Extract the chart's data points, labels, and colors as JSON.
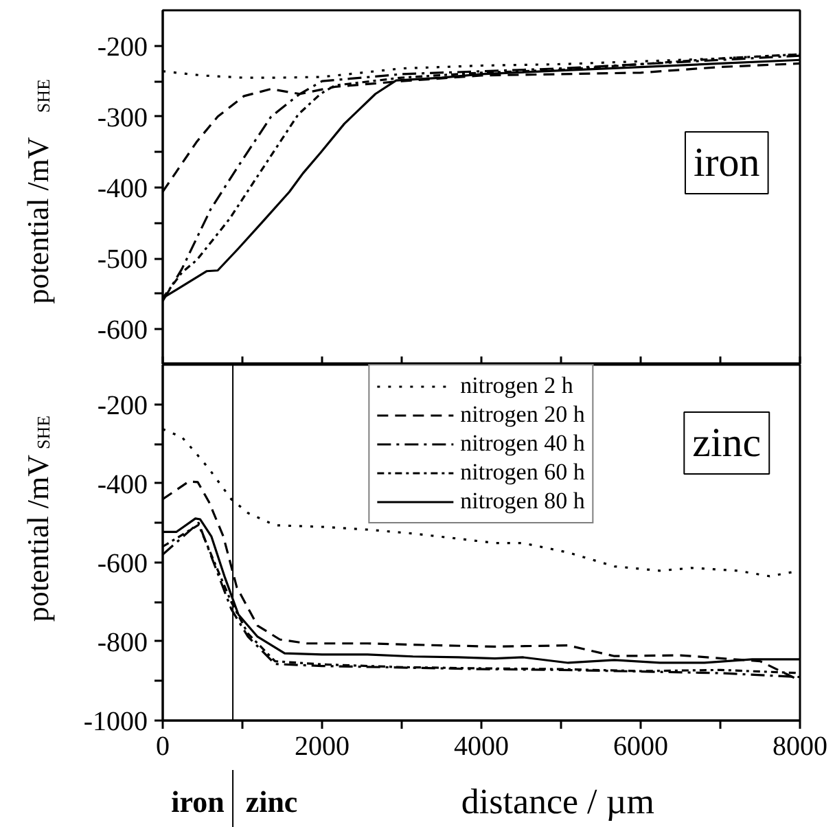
{
  "chart_data": [
    {
      "type": "line",
      "title": "iron",
      "ylabel": "potential /mV$_{SHE}$",
      "xlim": [
        0,
        8000
      ],
      "ylim": [
        -650,
        -150
      ],
      "xticks": [
        0,
        {
          "value": 1000,
          "label": null
        },
        2000,
        {
          "value": 3000,
          "label": null
        },
        4000,
        {
          "value": 5000,
          "label": null
        },
        6000,
        {
          "value": 7000,
          "label": null
        },
        8000
      ],
      "yticks": [
        -600,
        {
          "value": -550,
          "label": null
        },
        -500,
        {
          "value": -450,
          "label": null
        },
        -400,
        {
          "value": -350,
          "label": null
        },
        -300,
        {
          "value": -250,
          "label": null
        },
        -200
      ],
      "tick_labels": "y",
      "grid": false,
      "series": [
        {
          "color": "#000000",
          "line_style": "dotted",
          "x": [
            0,
            500,
            1000,
            1500,
            2000,
            2500,
            3000,
            4000,
            5000,
            6000,
            7000,
            8000
          ],
          "values": [
            -236,
            -242,
            -245,
            -245,
            -244,
            -238,
            -232,
            -228,
            -226,
            -222,
            -218,
            -212
          ]
        },
        {
          "color": "#000000",
          "line_style": "dashed",
          "x": [
            0,
            430,
            690,
            1020,
            1360,
            1720,
            2160,
            3000,
            4000,
            5000,
            6000,
            7000,
            8000
          ],
          "values": [
            -406,
            -335,
            -300,
            -271,
            -261,
            -268,
            -258,
            -250,
            -242,
            -240,
            -238,
            -230,
            -225
          ]
        },
        {
          "color": "#000000",
          "line_style": "dashdot",
          "x": [
            0,
            240,
            600,
            930,
            1360,
            1720,
            2000,
            3000,
            4000,
            5000,
            6000,
            7000,
            8000
          ],
          "values": [
            -560,
            -515,
            -431,
            -373,
            -300,
            -268,
            -250,
            -240,
            -236,
            -232,
            -226,
            -220,
            -214
          ]
        },
        {
          "color": "#000000",
          "line_style": "dotdash",
          "x": [
            0,
            240,
            430,
            840,
            1290,
            1700,
            1980,
            2160,
            3000,
            4000,
            5000,
            6000,
            7000,
            8000
          ],
          "values": [
            -556,
            -520,
            -502,
            -444,
            -367,
            -297,
            -268,
            -256,
            -245,
            -238,
            -234,
            -226,
            -218,
            -212
          ]
        },
        {
          "color": "#000000",
          "line_style": "solid",
          "x": [
            0,
            550,
            690,
            950,
            1240,
            1590,
            1760,
            1980,
            2280,
            2670,
            2930,
            3500,
            4000,
            5000,
            6000,
            7000,
            8000
          ],
          "values": [
            -556,
            -518,
            -517,
            -486,
            -450,
            -406,
            -380,
            -351,
            -310,
            -268,
            -249,
            -245,
            -240,
            -235,
            -230,
            -225,
            -220
          ]
        }
      ]
    },
    {
      "type": "line",
      "title": "zinc",
      "ylabel": "potential /mV$_{SHE}$",
      "xlabel": "distance / µm",
      "xlim": [
        0,
        8000
      ],
      "ylim": [
        -1000,
        -100
      ],
      "xticks": [
        0,
        {
          "value": 1000,
          "label": null
        },
        2000,
        {
          "value": 3000,
          "label": null
        },
        4000,
        {
          "value": 5000,
          "label": null
        },
        6000,
        {
          "value": 7000,
          "label": null
        },
        8000
      ],
      "yticks": [
        -1000,
        {
          "value": -900,
          "label": null
        },
        -800,
        {
          "value": -700,
          "label": null
        },
        -600,
        {
          "value": -500,
          "label": null
        },
        -400,
        {
          "value": -300,
          "label": null
        },
        -200
      ],
      "grid": false,
      "legend": "top",
      "annotations": [
        "iron",
        "zinc"
      ],
      "ref_lines": [
        {
          "axis": "x",
          "value": 880,
          "label": null,
          "color": "#000000"
        }
      ],
      "series": [
        {
          "name": "nitrogen 2 h",
          "color": "#000000",
          "line_style": "dotted",
          "x": [
            0,
            240,
            410,
            580,
            860,
            1070,
            1410,
            1990,
            2570,
            3140,
            3710,
            4170,
            4520,
            5090,
            5670,
            6240,
            6640,
            7220,
            7620,
            8000
          ],
          "values": [
            -263,
            -283,
            -322,
            -363,
            -440,
            -475,
            -506,
            -510,
            -517,
            -527,
            -540,
            -551,
            -551,
            -575,
            -610,
            -621,
            -614,
            -621,
            -635,
            -621
          ]
        },
        {
          "name": "nitrogen 20 h",
          "color": "#000000",
          "line_style": "dashed",
          "x": [
            0,
            330,
            440,
            580,
            760,
            930,
            1190,
            1470,
            1810,
            2570,
            3500,
            4170,
            5090,
            5670,
            6500,
            7500,
            8000
          ],
          "values": [
            -440,
            -395,
            -397,
            -447,
            -534,
            -663,
            -760,
            -795,
            -805,
            -805,
            -810,
            -813,
            -810,
            -837,
            -835,
            -850,
            -899
          ]
        },
        {
          "name": "nitrogen 40 h",
          "color": "#000000",
          "line_style": "dashdot",
          "x": [
            0,
            450,
            860,
            1070,
            1410,
            2000,
            3000,
            4000,
            5000,
            6000,
            7000,
            8000
          ],
          "values": [
            -580,
            -500,
            -718,
            -788,
            -857,
            -862,
            -866,
            -870,
            -872,
            -876,
            -880,
            -890
          ]
        },
        {
          "name": "nitrogen 60 h",
          "color": "#000000",
          "line_style": "dotdash",
          "x": [
            0,
            450,
            860,
            1070,
            1410,
            2000,
            3000,
            4000,
            5000,
            6000,
            7000,
            8000
          ],
          "values": [
            -560,
            -505,
            -700,
            -780,
            -850,
            -858,
            -865,
            -868,
            -870,
            -875,
            -872,
            -880
          ]
        },
        {
          "name": "nitrogen 80 h",
          "color": "#000000",
          "line_style": "solid",
          "x": [
            0,
            170,
            410,
            470,
            610,
            780,
            950,
            1190,
            1530,
            2000,
            2570,
            3140,
            3710,
            4170,
            4520,
            5090,
            5670,
            6240,
            6800,
            7400,
            8000
          ],
          "values": [
            -523,
            -523,
            -489,
            -491,
            -534,
            -638,
            -732,
            -788,
            -830,
            -833,
            -833,
            -838,
            -840,
            -843,
            -840,
            -854,
            -847,
            -854,
            -854,
            -845,
            -845
          ]
        }
      ]
    }
  ]
}
